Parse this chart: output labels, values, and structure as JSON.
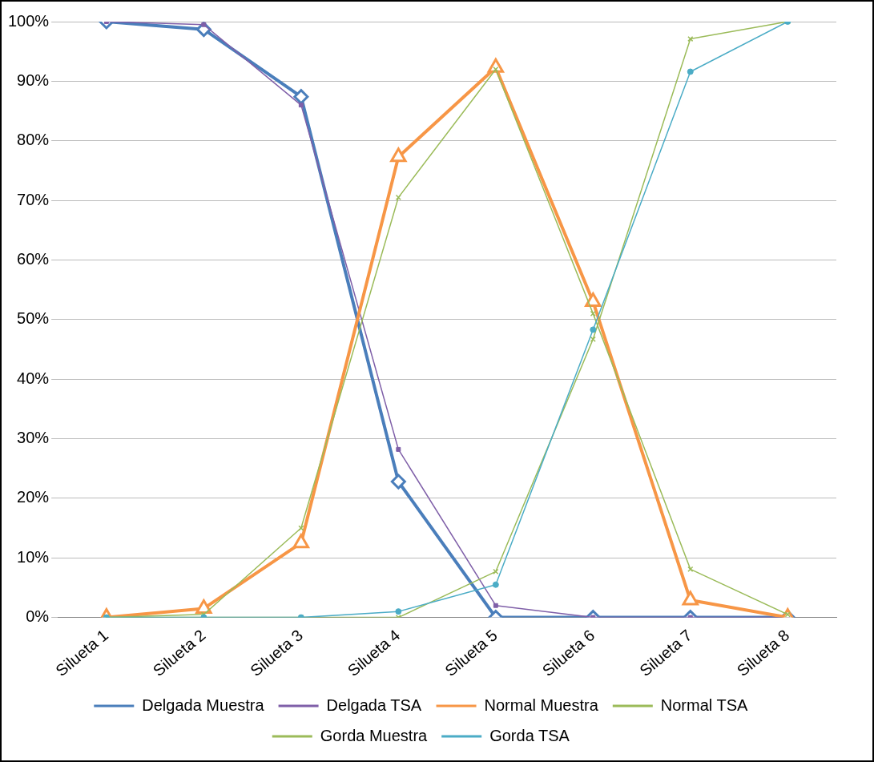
{
  "chart_data": {
    "type": "line",
    "categories": [
      "Silueta 1",
      "Silueta 2",
      "Silueta 3",
      "Silueta 4",
      "Silueta 5",
      "Silueta 6",
      "Silueta 7",
      "Silueta 8"
    ],
    "series": [
      {
        "name": "Delgada Muestra",
        "color": "#4a7ebb",
        "marker": "diamond",
        "values": [
          100,
          98.7,
          87.4,
          22.8,
          0,
          0,
          0,
          0
        ]
      },
      {
        "name": "Delgada TSA",
        "color": "#7f5fa8",
        "marker": "square",
        "values": [
          100,
          99.5,
          86,
          28.2,
          2,
          0,
          0,
          0
        ]
      },
      {
        "name": "Normal Muestra",
        "color": "#f79646",
        "marker": "triangle",
        "values": [
          0,
          1.5,
          12.5,
          77.3,
          92.3,
          53,
          2.9,
          0
        ]
      },
      {
        "name": "Normal TSA",
        "color": "#9bbb59",
        "marker": "cross",
        "values": [
          0,
          0.5,
          15,
          70.5,
          92,
          51,
          8.1,
          0.5
        ]
      },
      {
        "name": "Gorda Muestra",
        "color": "#9bbb59",
        "marker": "cross",
        "values": [
          0,
          0,
          0,
          0,
          7.7,
          46.7,
          97.1,
          100
        ]
      },
      {
        "name": "Gorda TSA",
        "color": "#4bacc6",
        "marker": "circle",
        "values": [
          0,
          0,
          0,
          1,
          5.5,
          48.3,
          91.6,
          100
        ]
      }
    ],
    "ylim": [
      0,
      100
    ],
    "yticks": [
      {
        "value": 0,
        "label": "0%"
      },
      {
        "value": 10,
        "label": "10%"
      },
      {
        "value": 20,
        "label": "20%"
      },
      {
        "value": 30,
        "label": "30%"
      },
      {
        "value": 40,
        "label": "40%"
      },
      {
        "value": 50,
        "label": "50%"
      },
      {
        "value": 60,
        "label": "60%"
      },
      {
        "value": 70,
        "label": "70%"
      },
      {
        "value": 80,
        "label": "80%"
      },
      {
        "value": 90,
        "label": "90%"
      },
      {
        "value": 100,
        "label": "100%"
      }
    ],
    "grid": "y",
    "legend": "bottom",
    "line_style": "solid"
  }
}
